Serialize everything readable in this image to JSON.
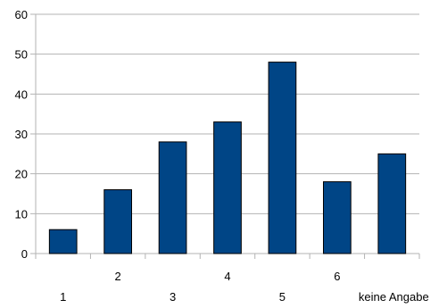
{
  "chart_data": {
    "type": "bar",
    "categories": [
      "1",
      "2",
      "3",
      "4",
      "5",
      "6",
      "keine  Angabe"
    ],
    "values": [
      6,
      16,
      28,
      33,
      48,
      18,
      25
    ],
    "ylim": [
      0,
      60
    ],
    "yticks": [
      "0",
      "10",
      "20",
      "30",
      "40",
      "50",
      "60"
    ],
    "grid": true,
    "bar_color": "#004586",
    "grid_color": "#b3b3b3",
    "title": "",
    "xlabel": "",
    "ylabel": ""
  }
}
